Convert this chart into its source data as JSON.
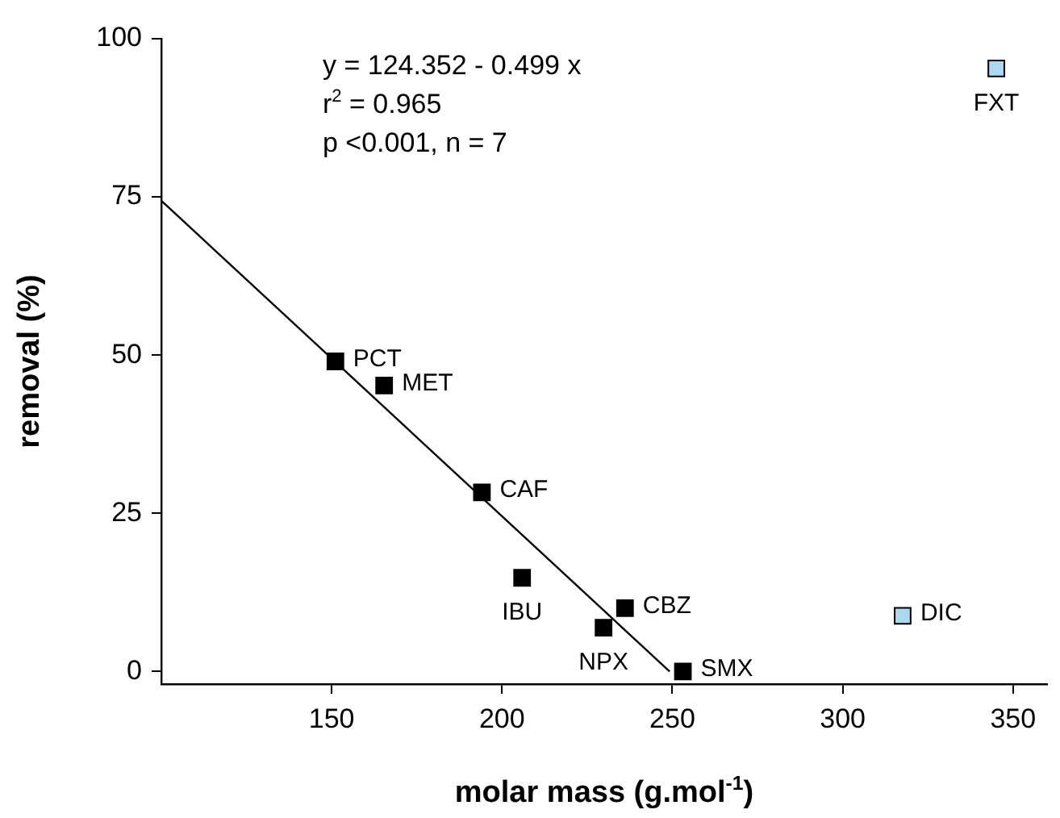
{
  "chart_data": {
    "type": "scatter",
    "xlabel": "molar mass (g.mol$^{-1}$)",
    "ylabel": "removal (%)",
    "xlim": [
      100,
      360
    ],
    "xticks": [
      150,
      200,
      250,
      300,
      350
    ],
    "ylim": [
      -2,
      100
    ],
    "yticks": [
      0,
      25,
      50,
      75,
      100
    ],
    "grid": false,
    "legend": false,
    "marker": "square",
    "series": [
      {
        "type": "scatter",
        "color": "#000000",
        "x": [
          151.1,
          165.4,
          194.1,
          205.9,
          229.8,
          236.1,
          253.1
        ],
        "values": [
          49.0,
          45.2,
          28.3,
          14.8,
          6.9,
          10.0,
          0.0
        ]
      },
      {
        "type": "scatter",
        "color": "#add8f0",
        "x": [
          317.6,
          345.1
        ],
        "values": [
          8.8,
          95.3
        ]
      },
      {
        "type": "line",
        "color": "#000000",
        "marker": "none",
        "x": [
          100,
          249.2
        ],
        "values": [
          74.4,
          0.0
        ]
      }
    ],
    "annotations": [
      "y = 124.352 - 0.499 x",
      "r$^{2}$ = 0.965",
      "p <0.001, n = 7",
      {
        "text": "PCT",
        "x": 151.1,
        "y": 49.0
      },
      {
        "text": "MET",
        "x": 165.4,
        "y": 45.2
      },
      {
        "text": "CAF",
        "x": 194.1,
        "y": 28.3
      },
      {
        "text": "IBU",
        "x": 205.9,
        "y": 14.8
      },
      {
        "text": "NPX",
        "x": 229.8,
        "y": 6.9
      },
      {
        "text": "CBZ",
        "x": 236.1,
        "y": 10.0
      },
      {
        "text": "SMX",
        "x": 253.1,
        "y": 0.0
      },
      {
        "text": "DIC",
        "x": 317.6,
        "y": 8.8
      },
      {
        "text": "FXT",
        "x": 345.1,
        "y": 95.3
      }
    ]
  }
}
